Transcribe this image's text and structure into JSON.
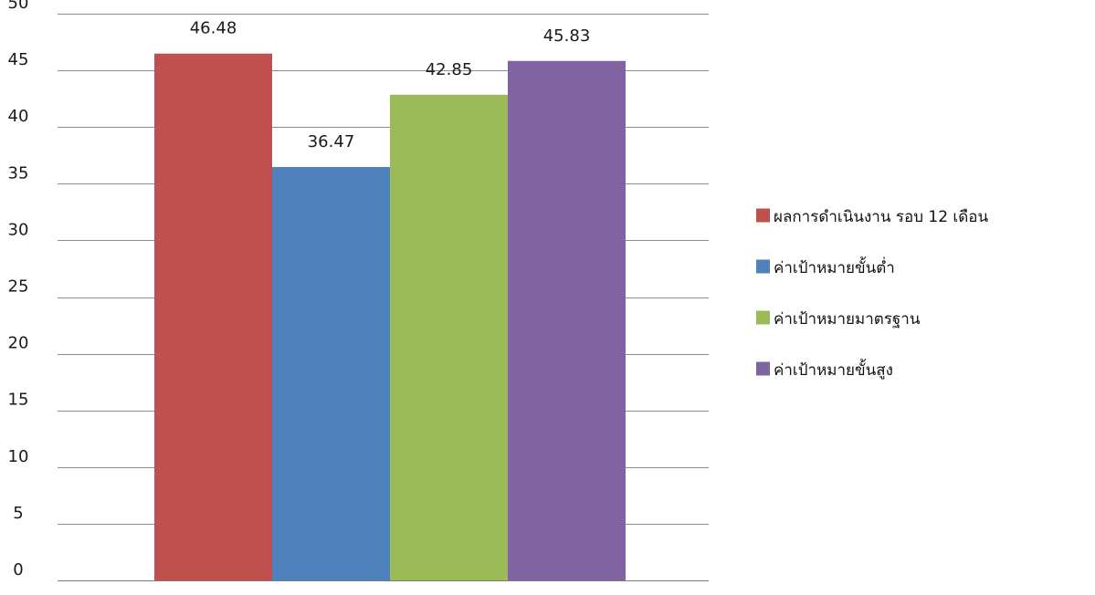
{
  "chart_data": {
    "type": "bar",
    "categories": [
      ""
    ],
    "series": [
      {
        "name": "ผลการดำเนินงาน  รอบ  12  เดือน",
        "values": [
          46.48
        ],
        "color": "#C0504D"
      },
      {
        "name": "ค่าเป้าหมายขั้นต่ำ",
        "values": [
          36.47
        ],
        "color": "#4F81BD"
      },
      {
        "name": "ค่าเป้าหมายมาตรฐาน",
        "values": [
          42.85
        ],
        "color": "#9BBB59"
      },
      {
        "name": "ค่าเป้าหมายขั้นสูง",
        "values": [
          45.83
        ],
        "color": "#8064A2"
      }
    ],
    "data_labels": [
      "46.48",
      "36.47",
      "42.85",
      "45.83"
    ],
    "y_ticks": [
      "0",
      "5",
      "10",
      "15",
      "20",
      "25",
      "30",
      "35",
      "40",
      "45",
      "50"
    ],
    "ylim": [
      0,
      50
    ],
    "grid": true,
    "legend_position": "right",
    "title": "",
    "xlabel": "",
    "ylabel": ""
  }
}
